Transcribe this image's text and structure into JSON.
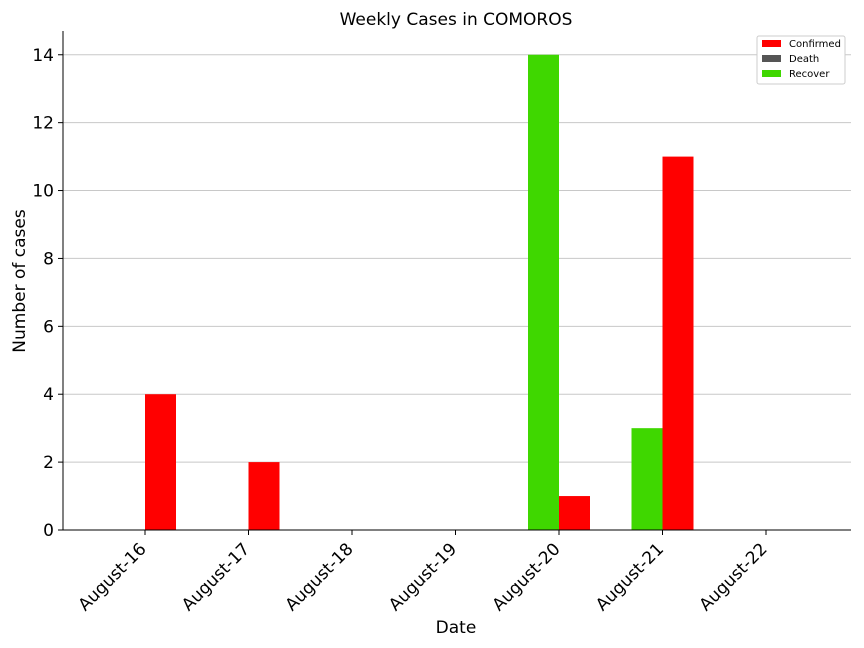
{
  "chart_data": {
    "type": "bar",
    "title": "Weekly Cases in COMOROS",
    "xlabel": "Date",
    "ylabel": "Number of cases",
    "categories": [
      "August-16",
      "August-17",
      "August-18",
      "August-19",
      "August-20",
      "August-21",
      "August-22"
    ],
    "series": [
      {
        "name": "Confirmed",
        "color": "#ff0000",
        "values": [
          4,
          2,
          0,
          0,
          1,
          11,
          0
        ]
      },
      {
        "name": "Death",
        "color": "#555555",
        "values": [
          0,
          0,
          0,
          0,
          0,
          0,
          0
        ]
      },
      {
        "name": "Recover",
        "color": "#3fd700",
        "values": [
          0,
          0,
          0,
          0,
          14,
          3,
          0
        ]
      }
    ],
    "ylim": [
      0,
      14.7
    ],
    "yticks": [
      0,
      2,
      4,
      6,
      8,
      10,
      12,
      14
    ],
    "grid": "horizontal",
    "legend_position": "top-right"
  }
}
